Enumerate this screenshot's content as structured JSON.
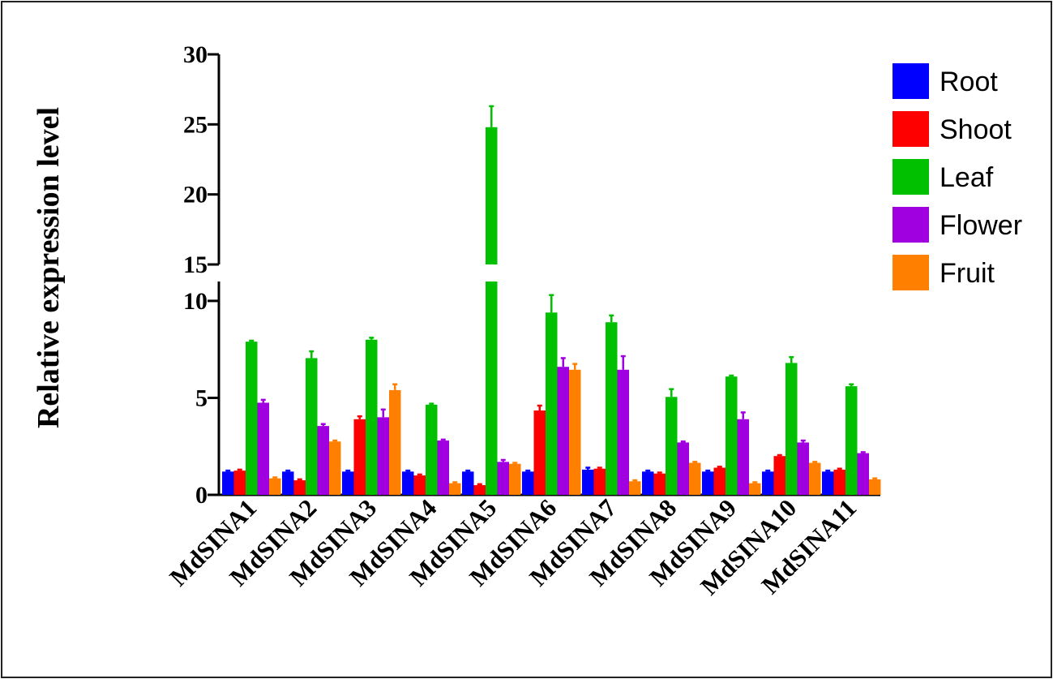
{
  "chart_data": {
    "type": "bar",
    "title": "",
    "xlabel": "",
    "ylabel": "Relative expression level",
    "categories": [
      "MdSINA1",
      "MdSINA2",
      "MdSINA3",
      "MdSINA4",
      "MdSINA5",
      "MdSINA6",
      "MdSINA7",
      "MdSINA8",
      "MdSINA9",
      "MdSINA10",
      "MdSINA11"
    ],
    "series": [
      {
        "name": "Root",
        "color": "#0000ff",
        "values": [
          1.2,
          1.2,
          1.2,
          1.2,
          1.2,
          1.2,
          1.3,
          1.2,
          1.2,
          1.2,
          1.2
        ],
        "errors": [
          0.05,
          0.05,
          0.05,
          0.05,
          0.05,
          0.05,
          0.1,
          0.05,
          0.05,
          0.05,
          0.05
        ]
      },
      {
        "name": "Shoot",
        "color": "#ff0000",
        "values": [
          1.25,
          0.75,
          3.9,
          1.0,
          0.5,
          4.35,
          1.35,
          1.1,
          1.4,
          2.0,
          1.3
        ],
        "errors": [
          0.05,
          0.05,
          0.15,
          0.05,
          0.05,
          0.25,
          0.05,
          0.05,
          0.05,
          0.05,
          0.05
        ]
      },
      {
        "name": "Leaf",
        "color": "#00c000",
        "values": [
          7.9,
          7.05,
          8.0,
          4.65,
          24.8,
          9.4,
          8.9,
          5.05,
          6.1,
          6.8,
          5.6
        ],
        "errors": [
          0.05,
          0.35,
          0.1,
          0.05,
          1.5,
          0.9,
          0.35,
          0.4,
          0.05,
          0.3,
          0.1
        ]
      },
      {
        "name": "Flower",
        "color": "#a000e0",
        "values": [
          4.75,
          3.55,
          4.0,
          2.8,
          1.7,
          6.6,
          6.45,
          2.7,
          3.9,
          2.7,
          2.15
        ],
        "errors": [
          0.15,
          0.1,
          0.4,
          0.05,
          0.1,
          0.45,
          0.7,
          0.05,
          0.35,
          0.1,
          0.05
        ]
      },
      {
        "name": "Fruit",
        "color": "#ff8000",
        "values": [
          0.85,
          2.75,
          5.4,
          0.6,
          1.6,
          6.45,
          0.7,
          1.65,
          0.6,
          1.65,
          0.8
        ],
        "errors": [
          0.05,
          0.05,
          0.3,
          0.05,
          0.05,
          0.3,
          0.05,
          0.05,
          0.05,
          0.05,
          0.05
        ]
      }
    ],
    "y_axis": {
      "broken": true,
      "lower_segment": {
        "range": [
          0,
          11
        ],
        "ticks": [
          0,
          5,
          10
        ]
      },
      "upper_segment": {
        "range": [
          15,
          30
        ],
        "ticks": [
          15,
          20,
          25,
          30
        ]
      }
    },
    "tick_labels": [
      "0",
      "5",
      "10",
      "15",
      "20",
      "25",
      "30"
    ],
    "legend_position": "top-right",
    "grid": false
  }
}
